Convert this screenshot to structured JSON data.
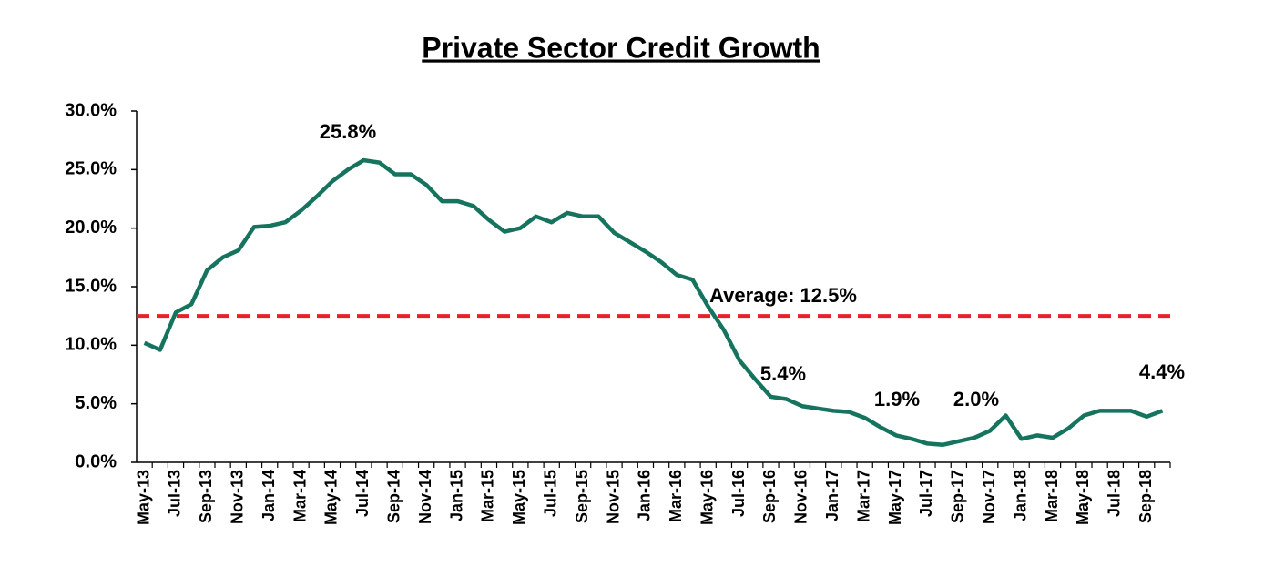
{
  "chart_data": {
    "type": "line",
    "title": "Private Sector Credit Growth",
    "categories": [
      "May-13",
      null,
      "Jul-13",
      null,
      "Sep-13",
      null,
      "Nov-13",
      null,
      "Jan-14",
      null,
      "Mar-14",
      null,
      "May-14",
      null,
      "Jul-14",
      null,
      "Sep-14",
      null,
      "Nov-14",
      null,
      "Jan-15",
      null,
      "Mar-15",
      null,
      "May-15",
      null,
      "Jul-15",
      null,
      "Sep-15",
      null,
      "Nov-15",
      null,
      "Jan-16",
      null,
      "Mar-16",
      null,
      "May-16",
      null,
      "Jul-16",
      null,
      "Sep-16",
      null,
      "Nov-16",
      null,
      "Jan-17",
      null,
      "Mar-17",
      null,
      "May-17",
      null,
      "Jul-17",
      null,
      "Sep-17",
      null,
      "Nov-17",
      null,
      "Jan-18",
      null,
      "Mar-18",
      null,
      "May-18",
      null,
      "Jul-18",
      null,
      "Sep-18",
      null
    ],
    "series": [
      {
        "name": "Private Sector Credit Growth",
        "color": "#16735e",
        "values": [
          10.2,
          9.6,
          12.8,
          13.5,
          16.4,
          17.5,
          18.1,
          20.1,
          20.2,
          20.5,
          21.5,
          22.7,
          24.0,
          25.0,
          25.8,
          25.6,
          24.6,
          24.6,
          23.7,
          22.3,
          22.3,
          21.9,
          20.7,
          19.7,
          20.0,
          21.0,
          20.5,
          21.3,
          21.0,
          21.0,
          19.6,
          18.8,
          18.0,
          17.1,
          16.0,
          15.6,
          13.3,
          11.3,
          8.7,
          7.1,
          5.6,
          5.4,
          4.8,
          4.6,
          4.4,
          4.3,
          3.8,
          3.0,
          2.3,
          2.0,
          1.6,
          1.5,
          1.8,
          2.1,
          2.7,
          4.0,
          2.0,
          2.3,
          2.1,
          2.9,
          4.0,
          4.4,
          4.4,
          4.4,
          3.9,
          4.4
        ]
      }
    ],
    "average": {
      "value": 12.5,
      "label": "Average: 12.5%",
      "color": "#e8202a"
    },
    "annotations": [
      "25.8%",
      "5.4%",
      "1.9%",
      "2.0%",
      "4.4%"
    ],
    "ylim": [
      0,
      30
    ],
    "yticks": [
      {
        "value": 0,
        "label": "0.0%"
      },
      {
        "value": 5,
        "label": "5.0%"
      },
      {
        "value": 10,
        "label": "10.0%"
      },
      {
        "value": 15,
        "label": "15.0%"
      },
      {
        "value": 20,
        "label": "20.0%"
      },
      {
        "value": 25,
        "label": "25.0%"
      },
      {
        "value": 30,
        "label": "30.0%"
      }
    ],
    "grid": false
  }
}
